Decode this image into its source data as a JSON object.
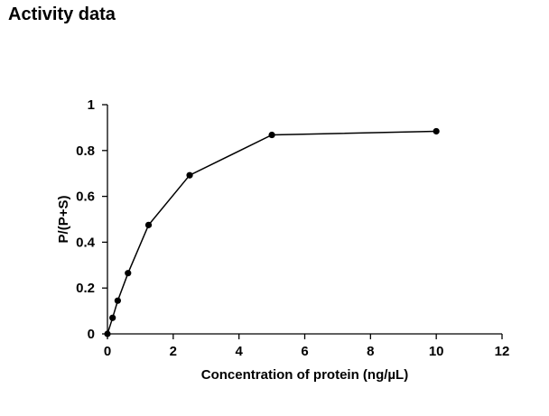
{
  "page": {
    "title": "Activity data"
  },
  "chart_data": {
    "type": "line",
    "xlabel": "Concentration of protein (ng/µL)",
    "ylabel": "P/(P+S)",
    "xlim": [
      0,
      12
    ],
    "ylim": [
      0,
      1
    ],
    "xticks": [
      0,
      2,
      4,
      6,
      8,
      10,
      12
    ],
    "yticks": [
      0,
      0.2,
      0.4,
      0.6,
      0.8,
      1
    ],
    "ytick_labels": [
      "0",
      "0.2",
      "0.4",
      "0.6",
      "0.8",
      "1"
    ],
    "grid": false,
    "markers": true,
    "series": [
      {
        "x": [
          0,
          0.156,
          0.3125,
          0.625,
          1.25,
          2.5,
          5,
          10
        ],
        "y": [
          0.0,
          0.07,
          0.145,
          0.265,
          0.475,
          0.692,
          0.868,
          0.884
        ]
      }
    ]
  }
}
